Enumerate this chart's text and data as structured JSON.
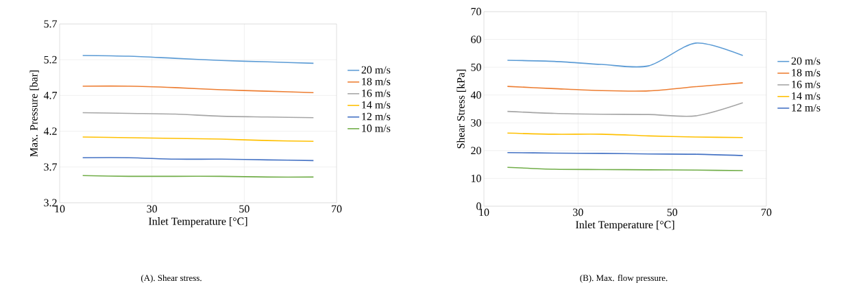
{
  "chart_data": [
    {
      "type": "line",
      "xlabel": "Inlet Temperature [°C]",
      "ylabel": "Max. Pressure [bar]",
      "x": [
        15,
        25,
        35,
        45,
        55,
        65
      ],
      "xlim": [
        10,
        70
      ],
      "xticks": [
        10,
        30,
        50,
        70
      ],
      "ylim": [
        3.2,
        5.7
      ],
      "yticks": [
        3.2,
        3.7,
        4.2,
        4.7,
        5.2,
        5.7
      ],
      "grid": true,
      "legend": "right",
      "annotations": [
        "(A). Shear stress."
      ],
      "series": [
        {
          "name": "20 m/s",
          "color": "#5b9bd5",
          "values": [
            5.26,
            5.25,
            5.22,
            5.19,
            5.17,
            5.15
          ]
        },
        {
          "name": "18 m/s",
          "color": "#ed7d31",
          "values": [
            4.83,
            4.83,
            4.81,
            4.78,
            4.76,
            4.74
          ]
        },
        {
          "name": "16 m/s",
          "color": "#a5a5a5",
          "values": [
            4.46,
            4.45,
            4.44,
            4.41,
            4.4,
            4.39
          ]
        },
        {
          "name": "14 m/s",
          "color": "#ffc000",
          "values": [
            4.12,
            4.11,
            4.1,
            4.09,
            4.07,
            4.06
          ]
        },
        {
          "name": "12 m/s",
          "color": "#4472c4",
          "values": [
            3.83,
            3.83,
            3.81,
            3.81,
            3.8,
            3.79
          ]
        },
        {
          "name": "10 m/s",
          "color": "#70ad47",
          "values": [
            3.58,
            3.57,
            3.57,
            3.57,
            3.56,
            3.56
          ]
        }
      ]
    },
    {
      "type": "line",
      "xlabel": "Inlet Temperature [°C]",
      "ylabel": "Shear Stress [kPa]",
      "x": [
        15,
        25,
        35,
        45,
        55,
        65
      ],
      "xlim": [
        10,
        70
      ],
      "xticks": [
        10,
        30,
        50,
        70
      ],
      "ylim": [
        0,
        70
      ],
      "yticks": [
        0,
        10,
        20,
        30,
        40,
        50,
        60,
        70
      ],
      "grid": true,
      "legend": "right",
      "annotations": [
        "(B). Max. flow pressure."
      ],
      "series": [
        {
          "name": "20 m/s",
          "color": "#5b9bd5",
          "values": [
            52.5,
            52.1,
            51,
            50.5,
            58.7,
            54.2
          ]
        },
        {
          "name": "18 m/s",
          "color": "#ed7d31",
          "values": [
            43.1,
            42.3,
            41.6,
            41.5,
            43,
            44.4
          ]
        },
        {
          "name": "16 m/s",
          "color": "#a5a5a5",
          "values": [
            34.1,
            33.4,
            33.1,
            33,
            32.5,
            37.2
          ]
        },
        {
          "name": "14 m/s",
          "color": "#ffc000",
          "values": [
            26.3,
            25.9,
            25.9,
            25.3,
            24.9,
            24.7
          ]
        },
        {
          "name": "12 m/s",
          "color": "#4472c4",
          "values": [
            19.3,
            19.1,
            19,
            18.8,
            18.7,
            18.2
          ]
        },
        {
          "color": "#70ad47",
          "values": [
            14,
            13.3,
            13.2,
            13.1,
            13,
            12.8
          ]
        }
      ]
    }
  ]
}
